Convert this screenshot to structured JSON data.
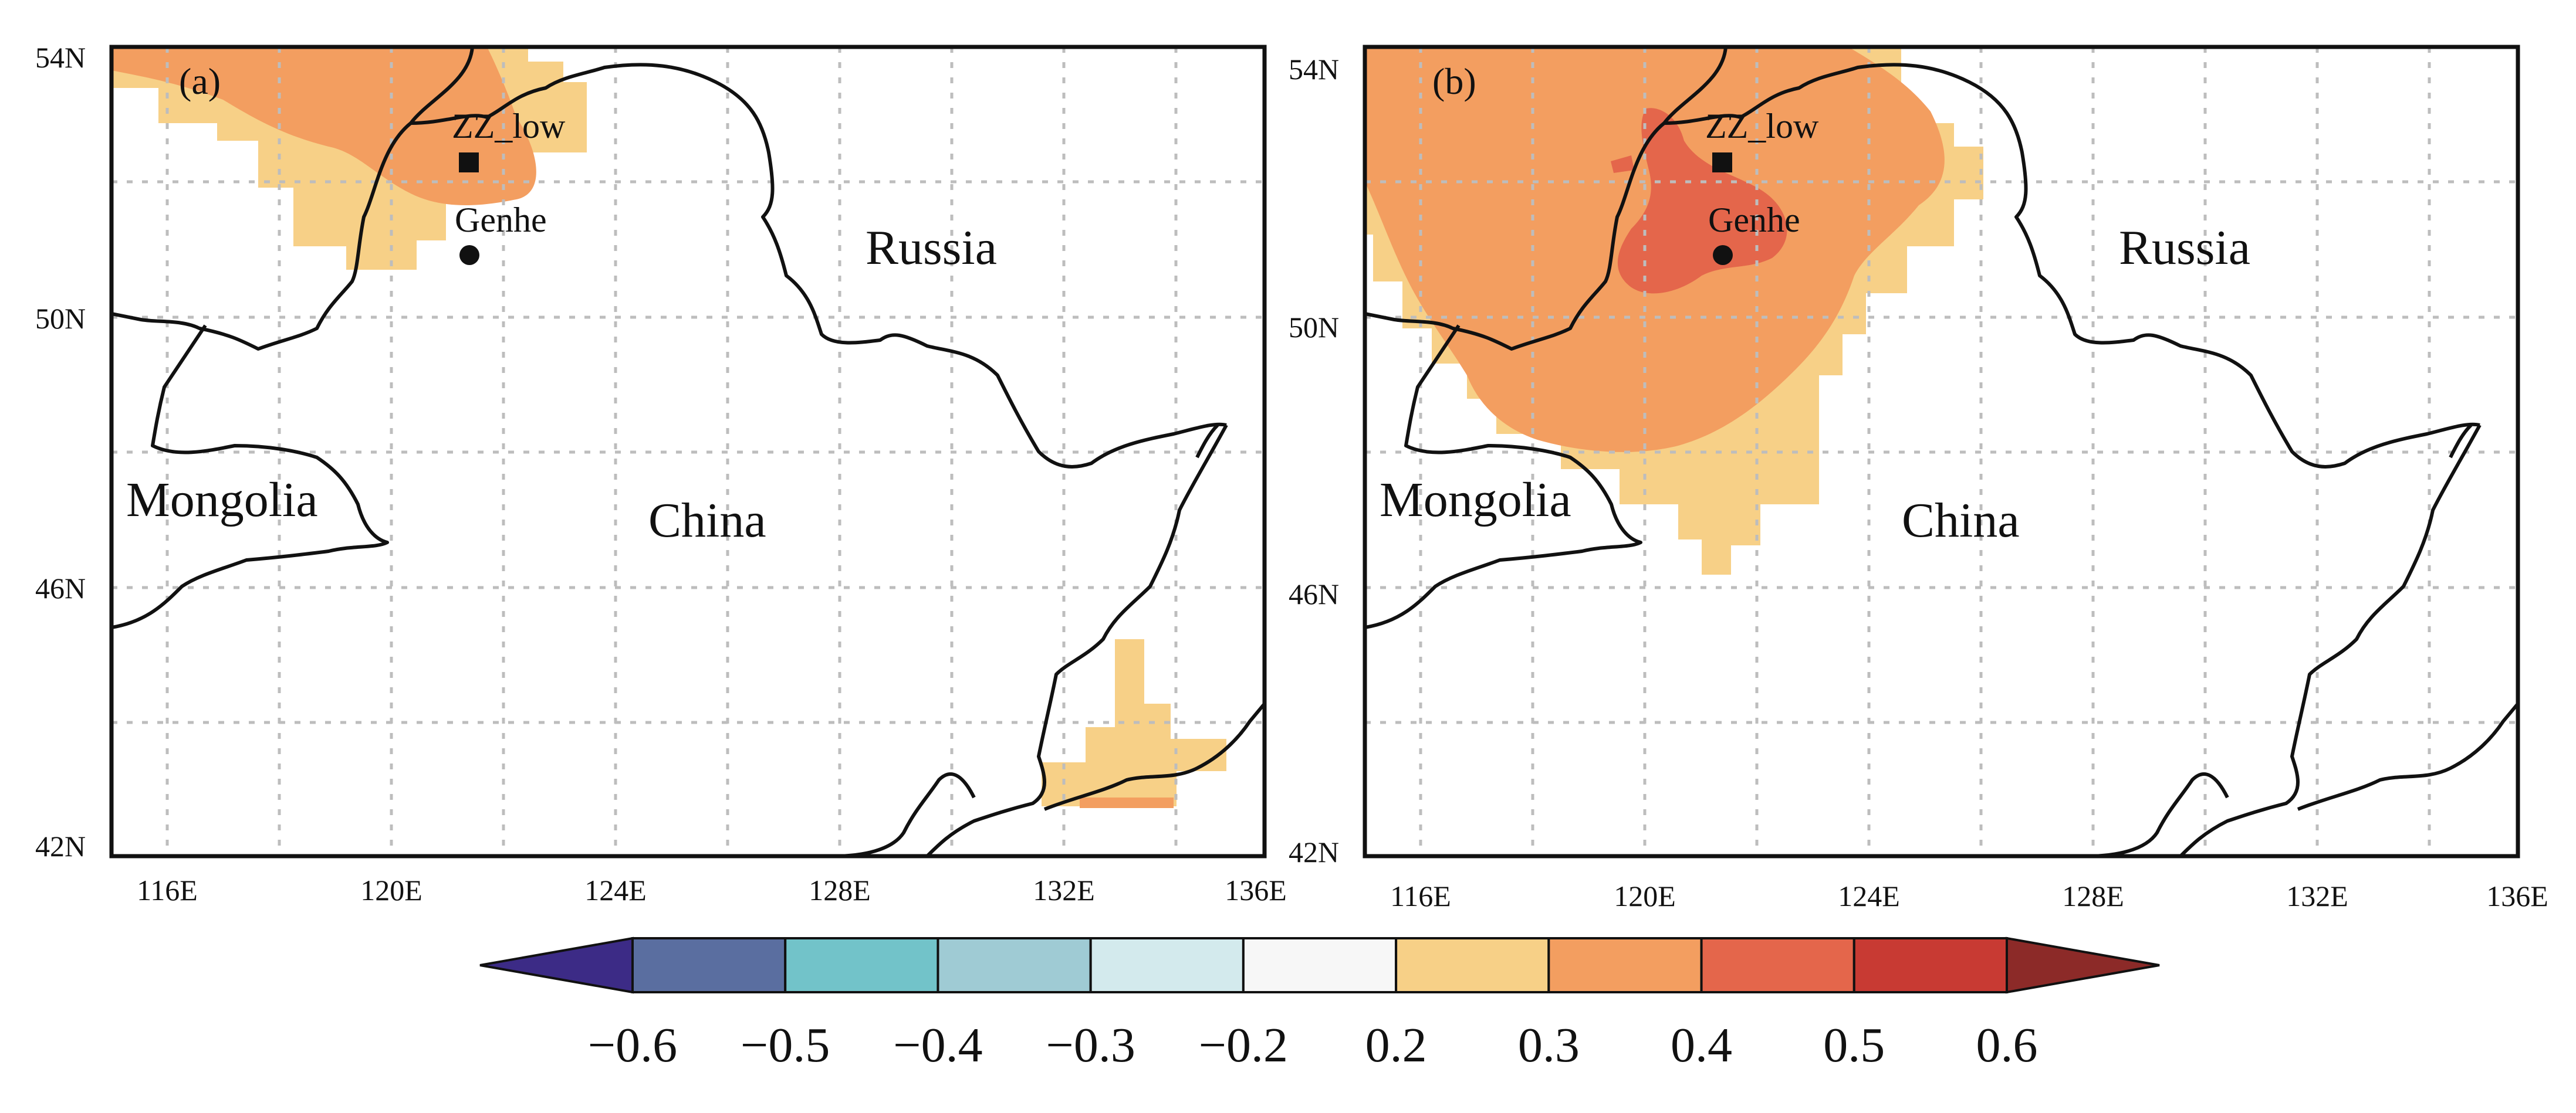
{
  "panels": [
    {
      "id": "a",
      "label": "(a)",
      "lon_ticks": [
        "116E",
        "120E",
        "124E",
        "128E",
        "132E",
        "136E"
      ],
      "lat_ticks": [
        "54N",
        "50N",
        "46N",
        "42N"
      ],
      "countries": [
        "Russia",
        "Mongolia",
        "China"
      ],
      "stations": [
        "ZZ_low",
        "Genhe"
      ]
    },
    {
      "id": "b",
      "label": "(b)",
      "lon_ticks": [
        "116E",
        "120E",
        "124E",
        "128E",
        "132E",
        "136E"
      ],
      "lat_ticks": [
        "54N",
        "50N",
        "46N",
        "42N"
      ],
      "countries": [
        "Russia",
        "Mongolia",
        "China"
      ],
      "stations": [
        "ZZ_low",
        "Genhe"
      ]
    }
  ],
  "colorbar": {
    "ticks": [
      "−0.6",
      "−0.5",
      "−0.4",
      "−0.3",
      "−0.2",
      "0.2",
      "0.3",
      "0.4",
      "0.5",
      "0.6"
    ],
    "colors": [
      "#3c2b86",
      "#5a6ea0",
      "#72c3c9",
      "#9fcbd4",
      "#d3eaed",
      "#f7f7f7",
      "#f7d087",
      "#f39e60",
      "#e4664b",
      "#c83a33",
      "#8c2a28"
    ]
  }
}
